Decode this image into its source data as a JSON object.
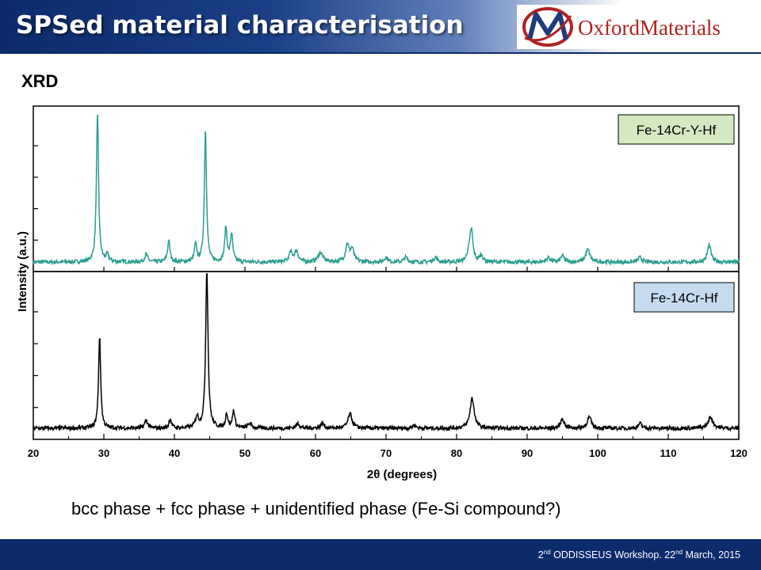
{
  "header": {
    "title": "SPSed material characterisation",
    "logo_text": "OxfordMaterials"
  },
  "section_label": "XRD",
  "caption": "bcc phase + fcc phase + unidentified phase (Fe-Si compound?)",
  "footer": {
    "ord1": "2",
    "sup1": "nd",
    "event": " ODDISSEUS Workshop. 22",
    "sup2": "nd",
    "date": " March, 2015"
  },
  "colors": {
    "header_dark": "#0b2b6b",
    "series_top": "#2a9d8f",
    "series_bottom": "#000000",
    "logo_red": "#b22222"
  },
  "chart_data": {
    "type": "line",
    "xlabel": "2θ (degrees)",
    "ylabel": "Intensity (a.u.)",
    "xlim": [
      20,
      120
    ],
    "x_ticks": [
      20,
      30,
      40,
      50,
      60,
      70,
      80,
      90,
      100,
      110,
      120
    ],
    "grid": false,
    "series": [
      {
        "name": "Fe-14Cr-Y-Hf",
        "color": "#2a9d8f",
        "baseline": 0.03,
        "peaks": [
          [
            29.1,
            0.95,
            0.18
          ],
          [
            30.5,
            0.04,
            0.25
          ],
          [
            36.0,
            0.05,
            0.25
          ],
          [
            39.2,
            0.14,
            0.2
          ],
          [
            43.0,
            0.11,
            0.2
          ],
          [
            44.4,
            0.85,
            0.18
          ],
          [
            47.3,
            0.22,
            0.2
          ],
          [
            48.1,
            0.18,
            0.2
          ],
          [
            56.5,
            0.06,
            0.3
          ],
          [
            57.3,
            0.07,
            0.3
          ],
          [
            60.7,
            0.06,
            0.4
          ],
          [
            64.5,
            0.11,
            0.3
          ],
          [
            65.2,
            0.08,
            0.3
          ],
          [
            70.0,
            0.03,
            0.3
          ],
          [
            72.8,
            0.03,
            0.3
          ],
          [
            77.0,
            0.03,
            0.3
          ],
          [
            81.7,
            0.05,
            0.3
          ],
          [
            82.1,
            0.2,
            0.25
          ],
          [
            83.5,
            0.04,
            0.3
          ],
          [
            93.0,
            0.03,
            0.3
          ],
          [
            95.0,
            0.04,
            0.3
          ],
          [
            98.6,
            0.08,
            0.35
          ],
          [
            106.0,
            0.03,
            0.3
          ],
          [
            115.8,
            0.11,
            0.3
          ]
        ]
      },
      {
        "name": "Fe-14Cr-Hf",
        "color": "#000000",
        "baseline": 0.04,
        "peaks": [
          [
            29.4,
            0.58,
            0.18
          ],
          [
            36.0,
            0.05,
            0.25
          ],
          [
            39.4,
            0.06,
            0.2
          ],
          [
            43.2,
            0.07,
            0.25
          ],
          [
            44.6,
            1.0,
            0.2
          ],
          [
            47.4,
            0.09,
            0.2
          ],
          [
            48.4,
            0.11,
            0.2
          ],
          [
            50.7,
            0.03,
            0.3
          ],
          [
            57.5,
            0.03,
            0.3
          ],
          [
            61.0,
            0.03,
            0.3
          ],
          [
            64.9,
            0.09,
            0.35
          ],
          [
            74.0,
            0.02,
            0.3
          ],
          [
            82.2,
            0.19,
            0.35
          ],
          [
            95.0,
            0.06,
            0.3
          ],
          [
            98.8,
            0.07,
            0.35
          ],
          [
            106.0,
            0.03,
            0.3
          ],
          [
            116.0,
            0.07,
            0.4
          ]
        ]
      }
    ]
  }
}
